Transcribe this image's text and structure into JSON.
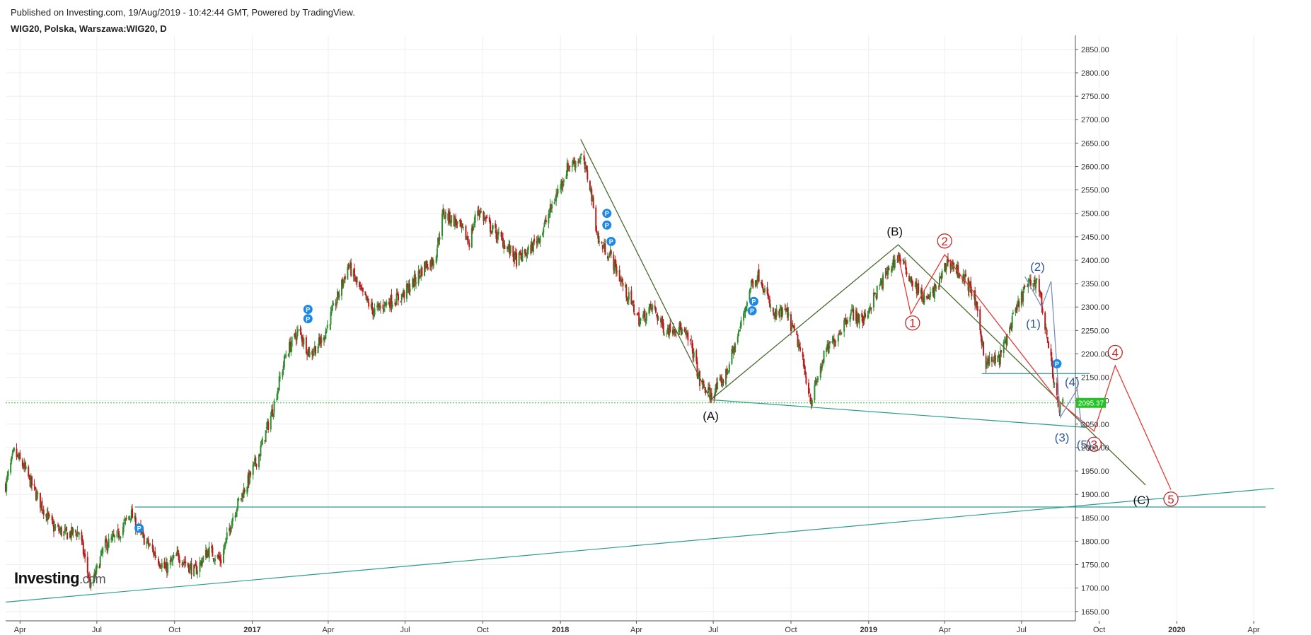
{
  "header": {
    "published": "Published on Investing.com, 19/Aug/2019 - 10:42:44 GMT, Powered by TradingView.",
    "symbol": "WIG20, Polska, Warszawa:WIG20, D"
  },
  "brand": {
    "name": "Investing",
    "suffix": ".com"
  },
  "chart_data": {
    "type": "candlestick",
    "ylim": [
      1630,
      2880
    ],
    "y_ticks": [
      1650,
      1700,
      1750,
      1800,
      1850,
      1900,
      1950,
      2000,
      2050,
      2100,
      2150,
      2200,
      2250,
      2300,
      2350,
      2400,
      2450,
      2500,
      2550,
      2600,
      2650,
      2700,
      2750,
      2800,
      2850
    ],
    "y_tick_labels": [
      "1650.00",
      "1700.00",
      "1750.00",
      "1800.00",
      "1850.00",
      "1900.00",
      "1950.00",
      "2000.00",
      "2050.00",
      "2100.00",
      "2150.00",
      "2200.00",
      "2250.00",
      "2300.00",
      "2350.00",
      "2400.00",
      "2450.00",
      "2500.00",
      "2550.00",
      "2600.00",
      "2650.00",
      "2700.00",
      "2750.00",
      "2800.00",
      "2850.00"
    ],
    "x_ticks": [
      {
        "date": "2016-04-01",
        "label": "Apr",
        "bold": false
      },
      {
        "date": "2016-07-01",
        "label": "Jul",
        "bold": false
      },
      {
        "date": "2016-10-01",
        "label": "Oct",
        "bold": false
      },
      {
        "date": "2017-01-01",
        "label": "2017",
        "bold": true
      },
      {
        "date": "2017-04-01",
        "label": "Apr",
        "bold": false
      },
      {
        "date": "2017-07-01",
        "label": "Jul",
        "bold": false
      },
      {
        "date": "2017-10-01",
        "label": "Oct",
        "bold": false
      },
      {
        "date": "2018-01-01",
        "label": "2018",
        "bold": true
      },
      {
        "date": "2018-04-01",
        "label": "Apr",
        "bold": false
      },
      {
        "date": "2018-07-01",
        "label": "Jul",
        "bold": false
      },
      {
        "date": "2018-10-01",
        "label": "Oct",
        "bold": false
      },
      {
        "date": "2019-01-01",
        "label": "2019",
        "bold": true
      },
      {
        "date": "2019-04-01",
        "label": "Apr",
        "bold": false
      },
      {
        "date": "2019-07-01",
        "label": "Jul",
        "bold": false
      },
      {
        "date": "2019-10-01",
        "label": "Oct",
        "bold": false
      },
      {
        "date": "2020-01-01",
        "label": "2020",
        "bold": true
      },
      {
        "date": "2020-04-01",
        "label": "Apr",
        "bold": false
      }
    ],
    "x_range": [
      "2016-03-15",
      "2020-05-05"
    ],
    "price_path": [
      [
        "2016-03-15",
        1920
      ],
      [
        "2016-03-25",
        1990
      ],
      [
        "2016-04-05",
        1960
      ],
      [
        "2016-04-20",
        1900
      ],
      [
        "2016-05-10",
        1830
      ],
      [
        "2016-05-25",
        1815
      ],
      [
        "2016-06-10",
        1820
      ],
      [
        "2016-06-24",
        1700
      ],
      [
        "2016-07-10",
        1790
      ],
      [
        "2016-07-25",
        1810
      ],
      [
        "2016-08-10",
        1860
      ],
      [
        "2016-08-20",
        1820
      ],
      [
        "2016-09-05",
        1780
      ],
      [
        "2016-09-20",
        1740
      ],
      [
        "2016-10-05",
        1770
      ],
      [
        "2016-10-25",
        1735
      ],
      [
        "2016-11-10",
        1780
      ],
      [
        "2016-11-25",
        1760
      ],
      [
        "2016-12-10",
        1860
      ],
      [
        "2016-12-25",
        1920
      ],
      [
        "2017-01-10",
        1990
      ],
      [
        "2017-01-25",
        2080
      ],
      [
        "2017-02-10",
        2200
      ],
      [
        "2017-02-25",
        2250
      ],
      [
        "2017-03-10",
        2200
      ],
      [
        "2017-03-25",
        2230
      ],
      [
        "2017-04-10",
        2310
      ],
      [
        "2017-04-25",
        2390
      ],
      [
        "2017-05-10",
        2330
      ],
      [
        "2017-05-25",
        2290
      ],
      [
        "2017-06-10",
        2310
      ],
      [
        "2017-06-25",
        2320
      ],
      [
        "2017-07-10",
        2350
      ],
      [
        "2017-07-25",
        2390
      ],
      [
        "2017-08-05",
        2400
      ],
      [
        "2017-08-15",
        2500
      ],
      [
        "2017-08-31",
        2480
      ],
      [
        "2017-09-15",
        2440
      ],
      [
        "2017-09-25",
        2510
      ],
      [
        "2017-10-10",
        2470
      ],
      [
        "2017-10-25",
        2440
      ],
      [
        "2017-11-10",
        2400
      ],
      [
        "2017-11-25",
        2420
      ],
      [
        "2017-12-10",
        2460
      ],
      [
        "2017-12-25",
        2530
      ],
      [
        "2018-01-10",
        2600
      ],
      [
        "2018-01-26",
        2620
      ],
      [
        "2018-02-05",
        2560
      ],
      [
        "2018-02-15",
        2440
      ],
      [
        "2018-03-01",
        2410
      ],
      [
        "2018-03-20",
        2330
      ],
      [
        "2018-04-05",
        2270
      ],
      [
        "2018-04-20",
        2300
      ],
      [
        "2018-05-05",
        2250
      ],
      [
        "2018-05-20",
        2260
      ],
      [
        "2018-06-05",
        2220
      ],
      [
        "2018-06-15",
        2140
      ],
      [
        "2018-06-28",
        2110
      ],
      [
        "2018-07-15",
        2150
      ],
      [
        "2018-08-01",
        2250
      ],
      [
        "2018-08-15",
        2350
      ],
      [
        "2018-08-25",
        2370
      ],
      [
        "2018-09-10",
        2280
      ],
      [
        "2018-09-25",
        2290
      ],
      [
        "2018-10-10",
        2220
      ],
      [
        "2018-10-25",
        2100
      ],
      [
        "2018-11-10",
        2200
      ],
      [
        "2018-11-25",
        2240
      ],
      [
        "2018-12-10",
        2290
      ],
      [
        "2018-12-25",
        2270
      ],
      [
        "2019-01-10",
        2330
      ],
      [
        "2019-01-25",
        2380
      ],
      [
        "2019-02-05",
        2410
      ],
      [
        "2019-02-20",
        2360
      ],
      [
        "2019-03-10",
        2310
      ],
      [
        "2019-03-25",
        2350
      ],
      [
        "2019-04-05",
        2400
      ],
      [
        "2019-04-20",
        2370
      ],
      [
        "2019-05-05",
        2330
      ],
      [
        "2019-05-20",
        2180
      ],
      [
        "2019-06-05",
        2190
      ],
      [
        "2019-06-20",
        2270
      ],
      [
        "2019-07-05",
        2340
      ],
      [
        "2019-07-20",
        2360
      ],
      [
        "2019-07-30",
        2250
      ],
      [
        "2019-08-08",
        2150
      ],
      [
        "2019-08-14",
        2080
      ],
      [
        "2019-08-19",
        2095
      ]
    ],
    "last_price": {
      "value": 2095.37,
      "label": "2095.37"
    },
    "pivots": [
      {
        "date": "2016-08-20",
        "price": 1828
      },
      {
        "date": "2017-03-08",
        "price": 2295
      },
      {
        "date": "2017-03-08",
        "price": 2275
      },
      {
        "date": "2018-02-25",
        "price": 2500
      },
      {
        "date": "2018-02-25",
        "price": 2475
      },
      {
        "date": "2018-03-02",
        "price": 2440
      },
      {
        "date": "2018-08-18",
        "price": 2312
      },
      {
        "date": "2018-08-16",
        "price": 2292
      },
      {
        "date": "2019-08-12",
        "price": 2179
      }
    ],
    "trendlines": [
      {
        "color": "#2a9d8f",
        "from": [
          "2016-03-15",
          1670
        ],
        "to": [
          "2020-04-25",
          1913
        ]
      },
      {
        "color": "#2a9d8f",
        "from": [
          "2016-08-15",
          1873
        ],
        "to": [
          "2020-04-15",
          1873
        ]
      },
      {
        "color": "#2a9d8f",
        "from": [
          "2018-06-28",
          2102
        ],
        "to": [
          "2019-09-15",
          2043
        ]
      },
      {
        "color": "#2a9d8f",
        "from": [
          "2019-05-15",
          2158
        ],
        "to": [
          "2019-09-20",
          2158
        ]
      }
    ],
    "wave_paths": [
      {
        "color": "#4a6b2f",
        "points": [
          [
            "2018-01-25",
            2658
          ],
          [
            "2018-06-28",
            2102
          ],
          [
            "2019-02-05",
            2433
          ],
          [
            "2019-11-25",
            1920
          ]
        ]
      },
      {
        "color": "#e53935",
        "points": [
          [
            "2019-02-05",
            2410
          ],
          [
            "2019-02-20",
            2285
          ],
          [
            "2019-04-01",
            2412
          ],
          [
            "2019-08-13",
            2100
          ],
          [
            "2019-09-25",
            2035
          ],
          [
            "2019-10-20",
            2175
          ],
          [
            "2019-12-25",
            1910
          ]
        ]
      },
      {
        "color": "#7a8fbf",
        "points": [
          [
            "2019-07-05",
            2365
          ],
          [
            "2019-07-25",
            2300
          ],
          [
            "2019-08-05",
            2355
          ],
          [
            "2019-08-16",
            2065
          ],
          [
            "2019-09-05",
            2125
          ],
          [
            "2019-09-10",
            2045
          ]
        ]
      }
    ],
    "wave_labels": [
      {
        "text": "(A)",
        "date": "2018-06-28",
        "price": 2068,
        "color": "#111111",
        "circle": false
      },
      {
        "text": "(B)",
        "date": "2019-02-01",
        "price": 2462,
        "color": "#111111",
        "circle": false
      },
      {
        "text": "(C)",
        "date": "2019-11-20",
        "price": 1888,
        "color": "#111111",
        "circle": false
      },
      {
        "text": "1",
        "date": "2019-02-22",
        "price": 2266,
        "color": "#c62828",
        "circle": true
      },
      {
        "text": "2",
        "date": "2019-04-01",
        "price": 2441,
        "color": "#c62828",
        "circle": true
      },
      {
        "text": "3",
        "date": "2019-09-25",
        "price": 2007,
        "color": "#c62828",
        "circle": true
      },
      {
        "text": "4",
        "date": "2019-10-20",
        "price": 2203,
        "color": "#c62828",
        "circle": true
      },
      {
        "text": "5",
        "date": "2019-12-25",
        "price": 1890,
        "color": "#c62828",
        "circle": true
      },
      {
        "text": "(1)",
        "date": "2019-07-15",
        "price": 2265,
        "color": "#2f5b9a",
        "circle": false
      },
      {
        "text": "(2)",
        "date": "2019-07-20",
        "price": 2386,
        "color": "#2f5b9a",
        "circle": false
      },
      {
        "text": "(3)",
        "date": "2019-08-18",
        "price": 2022,
        "color": "#2f5b9a",
        "circle": false
      },
      {
        "text": "(4)",
        "date": "2019-08-30",
        "price": 2140,
        "color": "#2f5b9a",
        "circle": false
      },
      {
        "text": "(5)",
        "date": "2019-09-13",
        "price": 2007,
        "color": "#2f5b9a",
        "circle": false
      }
    ],
    "colors": {
      "up": "#2e8b2e",
      "down": "#b71c1c",
      "grid": "#eeeeee",
      "last_price": "#22c322",
      "pivot": "#1e88e5"
    },
    "grid": true
  }
}
